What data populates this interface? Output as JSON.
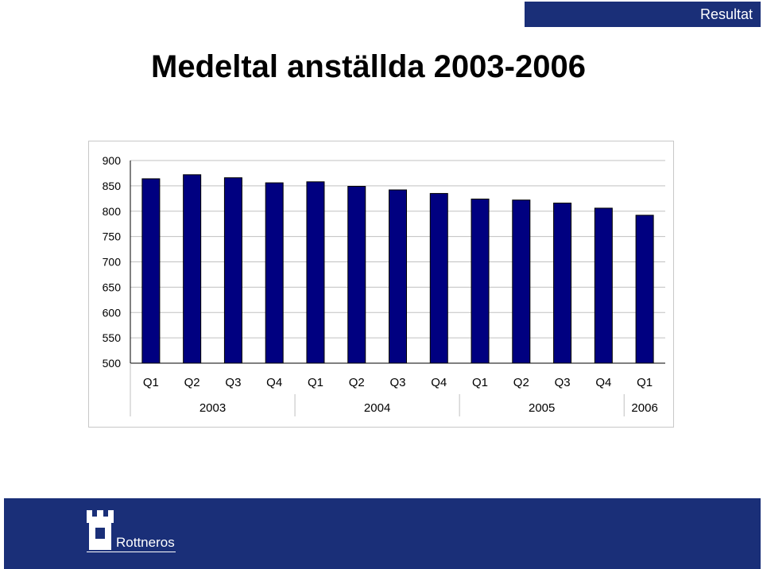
{
  "header": {
    "section_label": "Resultat"
  },
  "page": {
    "title": "Medeltal anställda 2003-2006"
  },
  "colors": {
    "band": "#1a2f78",
    "bar": "#000080"
  },
  "chart_data": {
    "type": "bar",
    "title": "",
    "xlabel": "",
    "ylabel": "",
    "ylim": [
      500,
      900
    ],
    "yticks": [
      500,
      550,
      600,
      650,
      700,
      750,
      800,
      850,
      900
    ],
    "grid": true,
    "categories": [
      "Q1",
      "Q2",
      "Q3",
      "Q4",
      "Q1",
      "Q2",
      "Q3",
      "Q4",
      "Q1",
      "Q2",
      "Q3",
      "Q4",
      "Q1"
    ],
    "groups": [
      {
        "label": "2003",
        "count": 4
      },
      {
        "label": "2004",
        "count": 4
      },
      {
        "label": "2005",
        "count": 4
      },
      {
        "label": "2006",
        "count": 1
      }
    ],
    "values": [
      864,
      872,
      866,
      856,
      858,
      849,
      842,
      835,
      824,
      822,
      816,
      806,
      792
    ]
  },
  "footer": {
    "logo_icon": "castle-tower-icon",
    "brand": "Rottneros"
  }
}
